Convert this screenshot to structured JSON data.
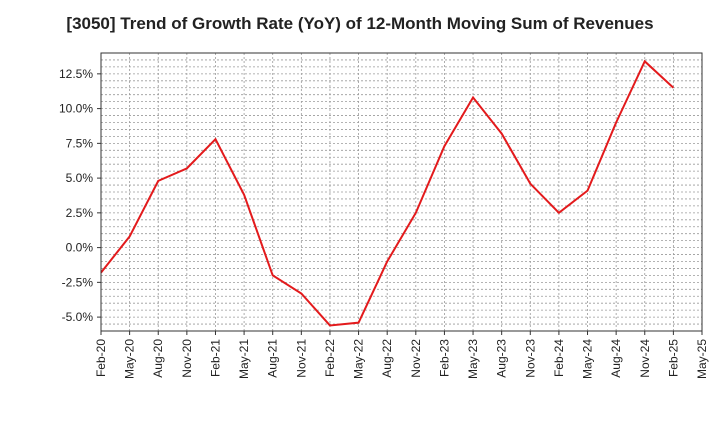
{
  "chart_data": {
    "type": "line",
    "title": "[3050]  Trend of Growth Rate (YoY) of 12-Month Moving Sum of Revenues",
    "xlabel": "",
    "ylabel": "",
    "ylim": [
      -6.0,
      14.0
    ],
    "y_ticks": [
      "12.5%",
      "10.0%",
      "7.5%",
      "5.0%",
      "2.5%",
      "0.0%",
      "-2.5%",
      "-5.0%"
    ],
    "y_tick_values": [
      12.5,
      10.0,
      7.5,
      5.0,
      2.5,
      0.0,
      -2.5,
      -5.0
    ],
    "x_ticks": [
      "Feb-20",
      "May-20",
      "Aug-20",
      "Nov-20",
      "Feb-21",
      "May-21",
      "Aug-21",
      "Nov-21",
      "Feb-22",
      "May-22",
      "Aug-22",
      "Nov-22",
      "Feb-23",
      "May-23",
      "Aug-23",
      "Nov-23",
      "Feb-24",
      "May-24",
      "Aug-24",
      "Nov-24",
      "Feb-25",
      "May-25"
    ],
    "grid": true,
    "line_color": "#e31a1c",
    "series": [
      {
        "x": [
          "Feb-20",
          "May-20",
          "Aug-20",
          "Nov-20",
          "Feb-21",
          "May-21",
          "Aug-21",
          "Nov-21",
          "Feb-22",
          "May-22",
          "Aug-22",
          "Nov-22",
          "Feb-23",
          "May-23",
          "Aug-23",
          "Nov-23",
          "Feb-24",
          "May-24",
          "Aug-24",
          "Nov-24",
          "Feb-25"
        ],
        "values": [
          -1.8,
          0.8,
          4.8,
          5.7,
          7.8,
          3.8,
          -2.0,
          -3.3,
          -5.6,
          -5.4,
          -1.0,
          2.5,
          7.3,
          10.8,
          8.2,
          4.6,
          2.5,
          4.1,
          9.0,
          13.4,
          11.5
        ]
      }
    ]
  }
}
